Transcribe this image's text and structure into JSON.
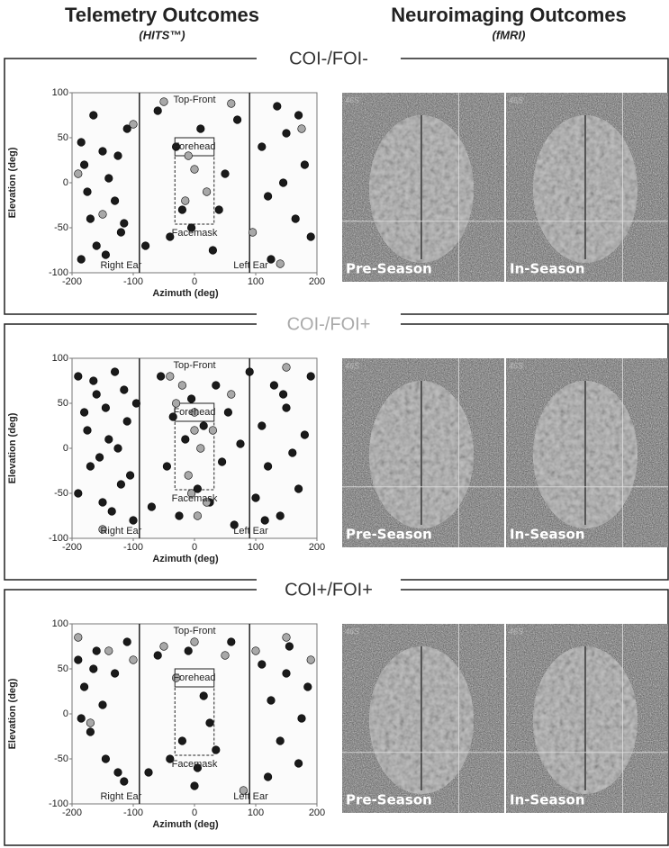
{
  "header": {
    "left_title": "Telemetry Outcomes",
    "left_subtitle": "(HITS™)",
    "right_title": "Neuroimaging Outcomes",
    "right_subtitle": "(fMRI)"
  },
  "panels": [
    {
      "label": "COI-/FOI-",
      "color": "#333333",
      "images": [
        {
          "corner": "46S",
          "label": "Pre-Season"
        },
        {
          "corner": "46S",
          "label": "In-Season"
        }
      ]
    },
    {
      "label": "COI-/FOI+",
      "color": "#aaaaaa",
      "images": [
        {
          "corner": "46S",
          "label": "Pre-Season"
        },
        {
          "corner": "46S",
          "label": "In-Season"
        }
      ]
    },
    {
      "label": "COI+/FOI+",
      "color": "#333333",
      "images": [
        {
          "corner": "46S",
          "label": "Pre-Season"
        },
        {
          "corner": "46S",
          "label": "In-Season"
        }
      ]
    }
  ],
  "chart_data": [
    {
      "type": "scatter",
      "xlabel": "Azimuth (deg)",
      "ylabel": "Elevation (deg)",
      "xlim": [
        -200,
        200
      ],
      "ylim": [
        -100,
        100
      ],
      "xticks": [
        -200,
        -100,
        0,
        100,
        200
      ],
      "yticks": [
        -100,
        -50,
        0,
        50,
        100
      ],
      "annotations": [
        "Top-Front",
        "Forehead",
        "Facemask",
        "Right Ear",
        "Left Ear"
      ],
      "series": [
        {
          "color": "#1a1a1a",
          "x": [
            -185,
            -180,
            -175,
            -170,
            -160,
            -150,
            -140,
            -130,
            -120,
            -110,
            -185,
            -165,
            -145,
            -125,
            -115,
            -60,
            -40,
            -20,
            10,
            30,
            50,
            70,
            110,
            120,
            135,
            150,
            165,
            180,
            190,
            125,
            145,
            170,
            -5,
            -30,
            40,
            -80
          ],
          "values": [
            45,
            20,
            -10,
            -40,
            -70,
            35,
            5,
            -20,
            -55,
            60,
            -85,
            75,
            -80,
            30,
            -45,
            80,
            -60,
            -30,
            60,
            -75,
            10,
            70,
            40,
            -15,
            85,
            55,
            -40,
            20,
            -60,
            -85,
            0,
            75,
            -50,
            40,
            -30,
            -70
          ]
        },
        {
          "color": "#a8a8a8",
          "x": [
            -190,
            -150,
            -100,
            -50,
            -10,
            20,
            60,
            95,
            140,
            175,
            0,
            -15
          ],
          "values": [
            10,
            -35,
            65,
            90,
            30,
            -10,
            88,
            -55,
            -90,
            60,
            15,
            -20
          ]
        }
      ]
    },
    {
      "type": "scatter",
      "xlabel": "Azimuth (deg)",
      "ylabel": "Elevation (deg)",
      "xlim": [
        -200,
        200
      ],
      "ylim": [
        -100,
        100
      ],
      "xticks": [
        -200,
        -100,
        0,
        100,
        200
      ],
      "yticks": [
        -100,
        -50,
        0,
        50,
        100
      ],
      "annotations": [
        "Top-Front",
        "Forehead",
        "Facemask",
        "Right Ear",
        "Left Ear"
      ],
      "series": [
        {
          "color": "#1a1a1a",
          "x": [
            -190,
            -180,
            -170,
            -160,
            -150,
            -140,
            -130,
            -120,
            -110,
            -100,
            -190,
            -175,
            -165,
            -155,
            -145,
            -135,
            -125,
            -115,
            -105,
            -95,
            -70,
            -55,
            -45,
            -35,
            -25,
            -15,
            -5,
            5,
            15,
            25,
            35,
            45,
            55,
            65,
            75,
            90,
            100,
            110,
            120,
            130,
            140,
            150,
            160,
            170,
            180,
            190,
            115,
            145
          ],
          "values": [
            80,
            40,
            -20,
            60,
            -60,
            10,
            85,
            -40,
            30,
            -80,
            -50,
            20,
            75,
            -10,
            45,
            -70,
            0,
            65,
            -30,
            50,
            -65,
            80,
            -20,
            35,
            -75,
            10,
            55,
            -45,
            25,
            -60,
            70,
            -15,
            40,
            -85,
            5,
            85,
            -55,
            25,
            -20,
            70,
            -75,
            45,
            -5,
            -45,
            15,
            80,
            -80,
            60
          ]
        },
        {
          "color": "#a8a8a8",
          "x": [
            -20,
            0,
            10,
            -10,
            20,
            30,
            -30,
            5,
            -40,
            60,
            -150,
            150,
            0,
            -5
          ],
          "values": [
            70,
            40,
            0,
            -30,
            -60,
            20,
            50,
            -75,
            80,
            60,
            -90,
            90,
            20,
            -50
          ]
        }
      ]
    },
    {
      "type": "scatter",
      "xlabel": "Azimuth (deg)",
      "ylabel": "Elevation (deg)",
      "xlim": [
        -200,
        200
      ],
      "ylim": [
        -100,
        100
      ],
      "xticks": [
        -200,
        -100,
        0,
        100,
        200
      ],
      "yticks": [
        -100,
        -50,
        0,
        50,
        100
      ],
      "annotations": [
        "Top-Front",
        "Forehead",
        "Facemask",
        "Right Ear",
        "Left Ear"
      ],
      "series": [
        {
          "color": "#1a1a1a",
          "x": [
            -190,
            -180,
            -170,
            -160,
            -145,
            -130,
            -115,
            -185,
            -165,
            -150,
            -125,
            -110,
            -60,
            -40,
            -20,
            0,
            15,
            25,
            35,
            -10,
            5,
            110,
            125,
            140,
            155,
            170,
            185,
            120,
            150,
            175,
            60,
            -75
          ],
          "values": [
            60,
            30,
            -20,
            70,
            -50,
            45,
            -75,
            -5,
            50,
            10,
            -65,
            80,
            65,
            -50,
            -30,
            -80,
            20,
            -10,
            -40,
            70,
            -60,
            55,
            15,
            -30,
            75,
            -55,
            30,
            -70,
            45,
            -5,
            80,
            -65
          ]
        },
        {
          "color": "#a8a8a8",
          "x": [
            -190,
            -140,
            -100,
            -50,
            0,
            50,
            100,
            150,
            190,
            -170,
            80,
            -30
          ],
          "values": [
            85,
            70,
            60,
            75,
            80,
            65,
            70,
            85,
            60,
            -10,
            -85,
            40
          ]
        }
      ]
    }
  ]
}
